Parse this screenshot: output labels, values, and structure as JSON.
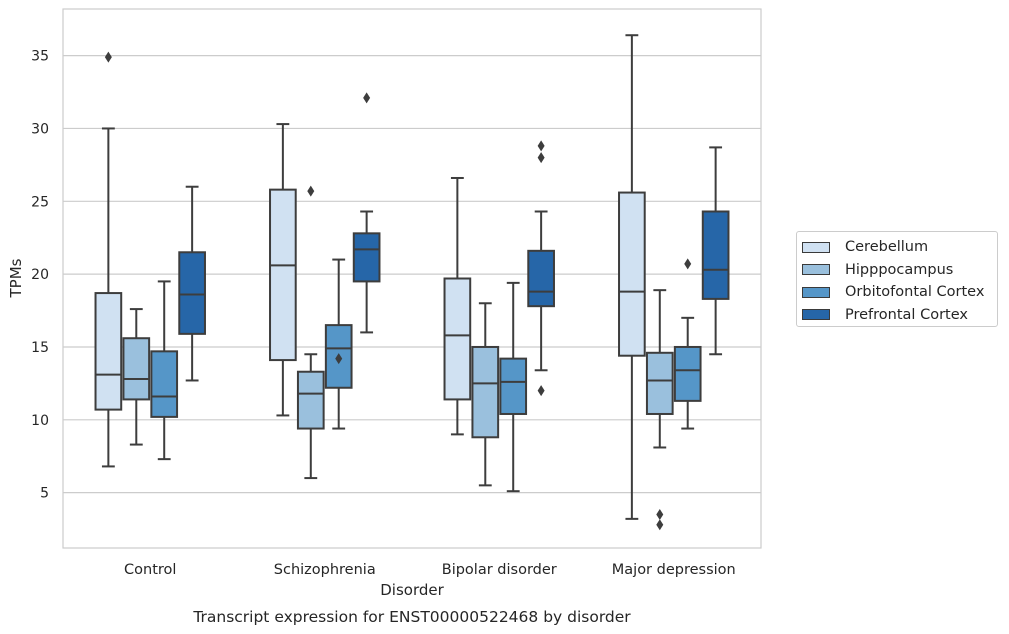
{
  "chart_data": {
    "type": "box",
    "caption": "Transcript expression for ENST00000522468 by disorder",
    "xlabel": "Disorder",
    "ylabel": "TPMs",
    "ylim": [
      1.2,
      38.2
    ],
    "yticks": [
      5,
      10,
      15,
      20,
      25,
      30,
      35
    ],
    "grid": "horizontal",
    "legend_position": "right",
    "categories": [
      "Control",
      "Schizophrenia",
      "Bipolar disorder",
      "Major depression"
    ],
    "series": [
      {
        "name": "Cerebellum",
        "color": "#d0e1f2",
        "boxes": [
          {
            "whisker_low": 6.8,
            "q1": 10.7,
            "median": 13.1,
            "q3": 18.7,
            "whisker_high": 30.0,
            "outliers": [
              34.9
            ]
          },
          {
            "whisker_low": 10.3,
            "q1": 14.1,
            "median": 20.6,
            "q3": 25.8,
            "whisker_high": 30.3,
            "outliers": []
          },
          {
            "whisker_low": 9.0,
            "q1": 11.4,
            "median": 15.8,
            "q3": 19.7,
            "whisker_high": 26.6,
            "outliers": []
          },
          {
            "whisker_low": 3.2,
            "q1": 14.4,
            "median": 18.8,
            "q3": 25.6,
            "whisker_high": 36.4,
            "outliers": []
          }
        ]
      },
      {
        "name": "Hipppocampus",
        "color": "#9ac0dd",
        "boxes": [
          {
            "whisker_low": 8.3,
            "q1": 11.4,
            "median": 12.8,
            "q3": 15.6,
            "whisker_high": 17.6,
            "outliers": []
          },
          {
            "whisker_low": 6.0,
            "q1": 9.4,
            "median": 11.8,
            "q3": 13.3,
            "whisker_high": 14.5,
            "outliers": [
              25.7
            ]
          },
          {
            "whisker_low": 5.5,
            "q1": 8.8,
            "median": 12.5,
            "q3": 15.0,
            "whisker_high": 18.0,
            "outliers": []
          },
          {
            "whisker_low": 8.1,
            "q1": 10.4,
            "median": 12.7,
            "q3": 14.6,
            "whisker_high": 18.9,
            "outliers": [
              3.5,
              2.8
            ]
          }
        ]
      },
      {
        "name": "Orbitofontal Cortex",
        "color": "#5596c8",
        "boxes": [
          {
            "whisker_low": 7.3,
            "q1": 10.2,
            "median": 11.6,
            "q3": 14.7,
            "whisker_high": 19.5,
            "outliers": []
          },
          {
            "whisker_low": 9.4,
            "q1": 12.2,
            "median": 14.9,
            "q3": 16.5,
            "whisker_high": 21.0,
            "outliers": [
              14.2
            ]
          },
          {
            "whisker_low": 5.1,
            "q1": 10.4,
            "median": 12.6,
            "q3": 14.2,
            "whisker_high": 19.4,
            "outliers": []
          },
          {
            "whisker_low": 9.4,
            "q1": 11.3,
            "median": 13.4,
            "q3": 15.0,
            "whisker_high": 17.0,
            "outliers": [
              20.7
            ]
          }
        ]
      },
      {
        "name": "Prefrontal Cortex",
        "color": "#2666a8",
        "boxes": [
          {
            "whisker_low": 12.7,
            "q1": 15.9,
            "median": 18.6,
            "q3": 21.5,
            "whisker_high": 26.0,
            "outliers": []
          },
          {
            "whisker_low": 16.0,
            "q1": 19.5,
            "median": 21.7,
            "q3": 22.8,
            "whisker_high": 24.3,
            "outliers": [
              32.1
            ]
          },
          {
            "whisker_low": 13.4,
            "q1": 17.8,
            "median": 18.8,
            "q3": 21.6,
            "whisker_high": 24.3,
            "outliers": [
              28.8,
              28.0,
              12.0
            ]
          },
          {
            "whisker_low": 14.5,
            "q1": 18.3,
            "median": 20.3,
            "q3": 24.3,
            "whisker_high": 28.7,
            "outliers": []
          }
        ]
      }
    ]
  }
}
